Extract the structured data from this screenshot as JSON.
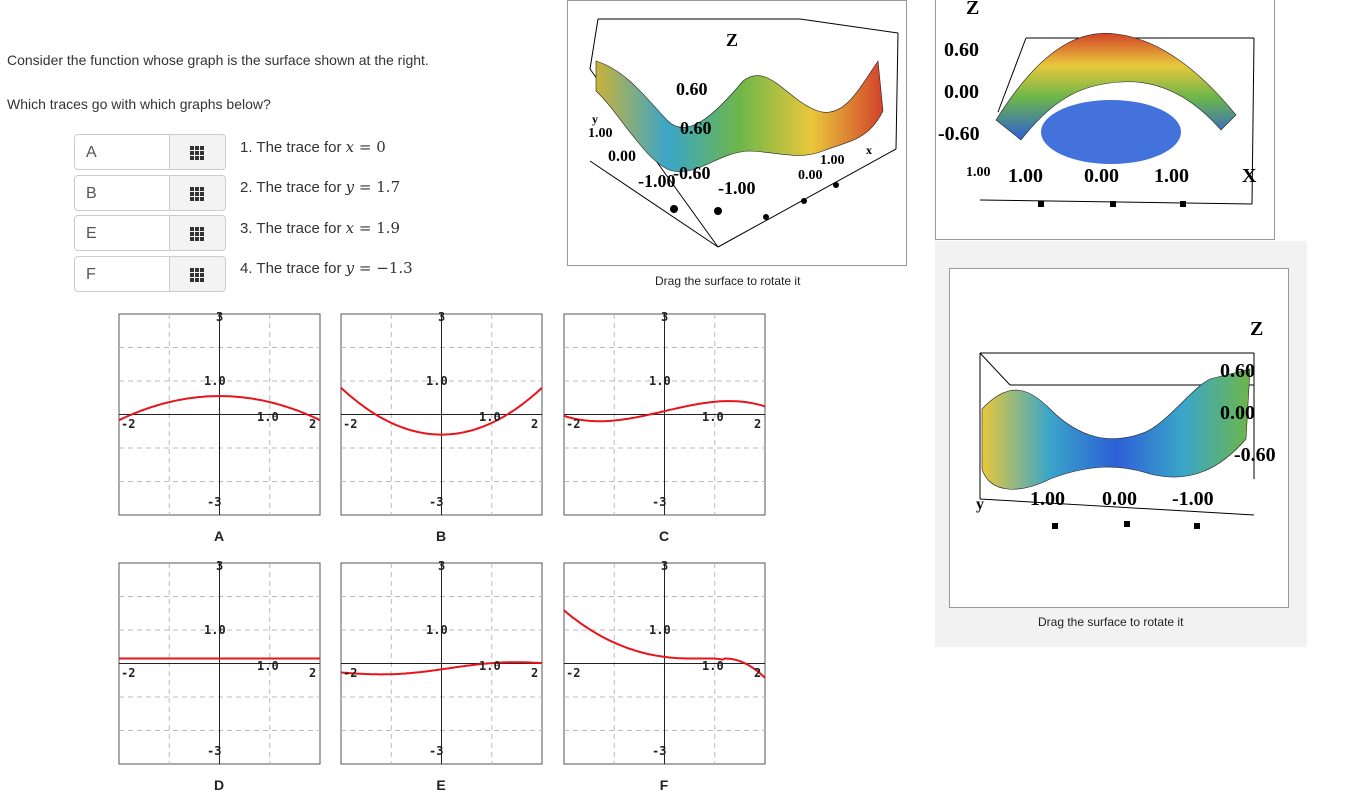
{
  "question": {
    "line1": "Consider the function whose graph is the surface shown at the right.",
    "line2": "Which traces go with which graphs below?"
  },
  "selects": [
    {
      "value": "A",
      "trace_number": "1.",
      "trace_text": "The trace for",
      "var": "x",
      "eq": "=",
      "val": "0"
    },
    {
      "value": "B",
      "trace_number": "2.",
      "trace_text": "The trace for",
      "var": "y",
      "eq": "=",
      "val": "1.7"
    },
    {
      "value": "E",
      "trace_number": "3.",
      "trace_text": "The trace for",
      "var": "x",
      "eq": "=",
      "val": "1.9"
    },
    {
      "value": "F",
      "trace_number": "4.",
      "trace_text": "The trace for",
      "var": "y",
      "eq": "=",
      "val": "−1.3"
    }
  ],
  "tick_labels": {
    "top": "3",
    "mid": "1.0",
    "left": "-2",
    "right": "2",
    "bottom": "-3",
    "xmid": "1.0"
  },
  "graphs": [
    {
      "label": "A",
      "curve": "cap"
    },
    {
      "label": "B",
      "curve": "cup"
    },
    {
      "label": "C",
      "curve": "cubic-up"
    },
    {
      "label": "D",
      "curve": "flat"
    },
    {
      "label": "E",
      "curve": "wavy"
    },
    {
      "label": "F",
      "curve": "cubic-down"
    }
  ],
  "views": {
    "caption": "Drag the surface to rotate it",
    "view1": {
      "z_label": "Z",
      "labels": [
        "0.60",
        "0.60",
        "1.00",
        "0.00",
        "-1.00",
        "-0.60",
        "-1.00",
        "0.00",
        "1.00"
      ],
      "axis_x": "x",
      "axis_y": "y"
    },
    "view2": {
      "z_label": "Z",
      "labels": [
        "0.60",
        "0.00",
        "-0.60",
        "1.00",
        "1.00",
        "0.00",
        "1.00"
      ],
      "axis_x": "X"
    },
    "view3": {
      "z_label": "Z",
      "labels": [
        "0.60",
        "0.00",
        "-0.60",
        "1.00",
        "0.00",
        "-1.00"
      ],
      "axis_y": "y"
    }
  },
  "colors": {
    "curve": "#e8141b",
    "grid": "#bbbbbb",
    "axis": "#222222"
  }
}
